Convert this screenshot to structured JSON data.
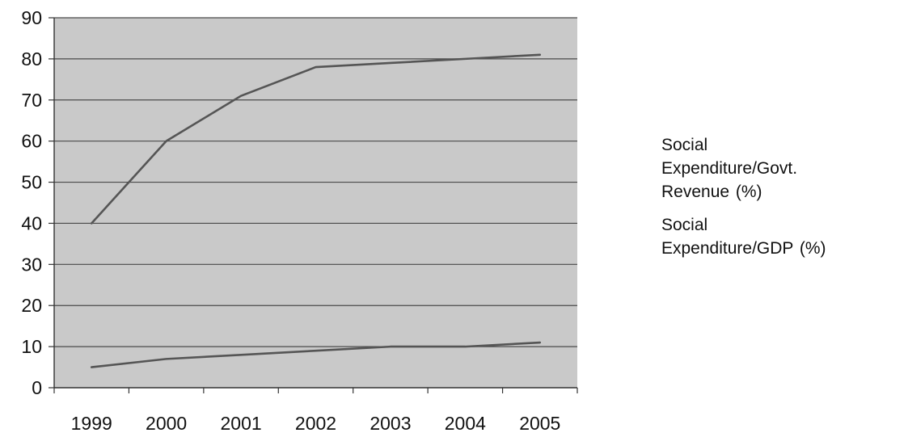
{
  "chart_data": {
    "type": "line",
    "title": "",
    "xlabel": "",
    "ylabel": "",
    "categories": [
      "1999",
      "2000",
      "2001",
      "2002",
      "2003",
      "2004",
      "2005"
    ],
    "ylim": [
      0,
      90
    ],
    "yticks": [
      0,
      10,
      20,
      30,
      40,
      50,
      60,
      70,
      80,
      90
    ],
    "grid": true,
    "legend_position": "right",
    "plot_background": "#c9c9c9",
    "line_color": "#555555",
    "series": [
      {
        "name": "Social Expenditure/Govt. Revenue (%)",
        "legend_lines": [
          "Social",
          "Expenditure/Govt.",
          "Revenue (%)"
        ],
        "values": [
          40,
          60,
          71,
          78,
          79,
          80,
          81
        ]
      },
      {
        "name": "Social Expenditure/GDP (%)",
        "legend_lines": [
          "Social",
          "Expenditure/GDP (%)"
        ],
        "values": [
          5,
          7,
          8,
          9,
          10,
          10,
          11
        ]
      }
    ]
  }
}
